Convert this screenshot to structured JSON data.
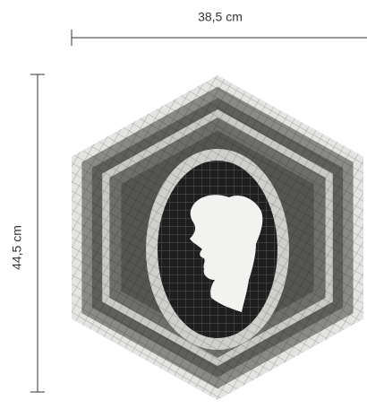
{
  "dimensions": {
    "width": "38,5 cm",
    "height": "44,5 cm"
  }
}
